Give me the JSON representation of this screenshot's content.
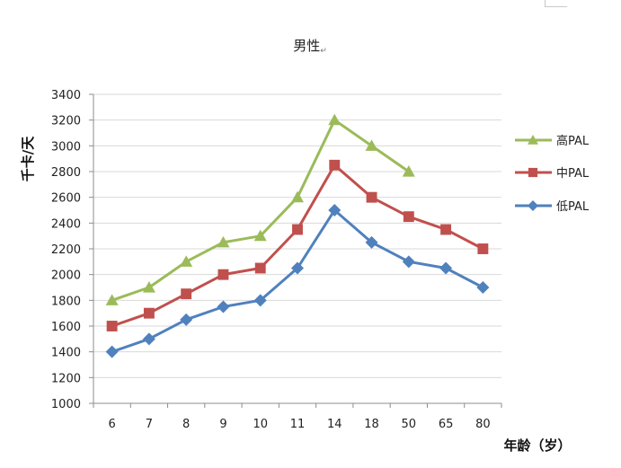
{
  "chart_data": {
    "type": "line",
    "title": "男性",
    "title_mark": "↵",
    "ylabel": "千卡/天",
    "xlabel": "年龄（岁）",
    "categories": [
      "6",
      "7",
      "8",
      "9",
      "10",
      "11",
      "14",
      "18",
      "50",
      "65",
      "80"
    ],
    "ylim": [
      1000,
      3400
    ],
    "yticks": [
      1000,
      1200,
      1400,
      1600,
      1800,
      2000,
      2200,
      2400,
      2600,
      2800,
      3000,
      3200,
      3400
    ],
    "grid": true,
    "legend_position": "right",
    "series": [
      {
        "name": "高PAL",
        "color": "#9BBB59",
        "marker": "triangle",
        "values": [
          1800,
          1900,
          2100,
          2250,
          2300,
          2600,
          3200,
          3000,
          2800,
          null,
          null
        ]
      },
      {
        "name": "中PAL",
        "color": "#C0504D",
        "marker": "square",
        "values": [
          1600,
          1700,
          1850,
          2000,
          2050,
          2350,
          2850,
          2600,
          2450,
          2350,
          2200
        ]
      },
      {
        "name": "低PAL",
        "color": "#4F81BD",
        "marker": "diamond",
        "values": [
          1400,
          1500,
          1650,
          1750,
          1800,
          2050,
          2500,
          2250,
          2100,
          2050,
          1900
        ]
      }
    ]
  }
}
